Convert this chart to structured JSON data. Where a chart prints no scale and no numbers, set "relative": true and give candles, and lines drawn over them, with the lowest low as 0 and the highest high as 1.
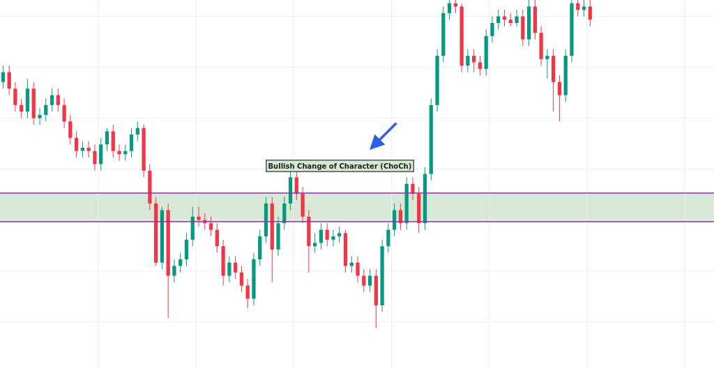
{
  "chart_data": {
    "type": "candlestick",
    "relative": true,
    "grid": true,
    "categories": [
      null,
      null,
      null,
      null,
      null,
      null,
      null,
      null,
      null,
      null,
      null,
      null,
      null,
      null,
      null,
      null,
      null,
      null,
      null,
      null,
      null,
      null,
      null,
      null,
      null,
      null,
      null,
      null,
      null,
      null,
      null,
      null,
      null,
      null,
      null,
      null,
      null,
      null,
      null,
      null,
      null,
      null,
      null,
      null,
      null,
      null,
      null,
      null,
      null,
      null,
      null,
      null,
      null,
      null,
      null,
      null,
      null,
      null,
      null,
      null,
      null,
      null,
      null,
      null,
      null,
      null,
      null,
      null,
      null,
      null,
      null,
      null,
      null,
      null,
      null,
      null,
      null,
      null,
      null,
      null,
      null,
      null,
      null,
      null,
      null,
      null,
      null,
      null,
      null,
      null,
      null,
      null,
      null,
      null,
      null,
      null,
      null
    ],
    "ohlc": [
      [
        0.75,
        0.8,
        0.73,
        0.78
      ],
      [
        0.78,
        0.8,
        0.71,
        0.73
      ],
      [
        0.73,
        0.75,
        0.66,
        0.68
      ],
      [
        0.68,
        0.7,
        0.64,
        0.66
      ],
      [
        0.66,
        0.76,
        0.64,
        0.73
      ],
      [
        0.73,
        0.75,
        0.62,
        0.64
      ],
      [
        0.64,
        0.67,
        0.62,
        0.65
      ],
      [
        0.65,
        0.7,
        0.63,
        0.68
      ],
      [
        0.68,
        0.73,
        0.66,
        0.71
      ],
      [
        0.71,
        0.73,
        0.66,
        0.68
      ],
      [
        0.68,
        0.7,
        0.61,
        0.63
      ],
      [
        0.63,
        0.65,
        0.56,
        0.58
      ],
      [
        0.58,
        0.6,
        0.52,
        0.54
      ],
      [
        0.54,
        0.57,
        0.52,
        0.55
      ],
      [
        0.55,
        0.57,
        0.52,
        0.54
      ],
      [
        0.54,
        0.56,
        0.48,
        0.5
      ],
      [
        0.5,
        0.58,
        0.48,
        0.56
      ],
      [
        0.56,
        0.61,
        0.54,
        0.6
      ],
      [
        0.6,
        0.62,
        0.52,
        0.54
      ],
      [
        0.54,
        0.56,
        0.51,
        0.53
      ],
      [
        0.53,
        0.56,
        0.51,
        0.54
      ],
      [
        0.54,
        0.61,
        0.52,
        0.59
      ],
      [
        0.59,
        0.63,
        0.57,
        0.61
      ],
      [
        0.61,
        0.62,
        0.46,
        0.48
      ],
      [
        0.48,
        0.5,
        0.36,
        0.38
      ],
      [
        0.38,
        0.4,
        0.19,
        0.2
      ],
      [
        0.2,
        0.37,
        0.18,
        0.36
      ],
      [
        0.36,
        0.38,
        0.03,
        0.16
      ],
      [
        0.16,
        0.21,
        0.14,
        0.19
      ],
      [
        0.19,
        0.23,
        0.17,
        0.21
      ],
      [
        0.21,
        0.29,
        0.19,
        0.27
      ],
      [
        0.27,
        0.37,
        0.25,
        0.34
      ],
      [
        0.34,
        0.37,
        0.31,
        0.33
      ],
      [
        0.33,
        0.35,
        0.3,
        0.32
      ],
      [
        0.32,
        0.34,
        0.28,
        0.3
      ],
      [
        0.3,
        0.32,
        0.23,
        0.25
      ],
      [
        0.25,
        0.27,
        0.13,
        0.16
      ],
      [
        0.16,
        0.22,
        0.14,
        0.2
      ],
      [
        0.2,
        0.22,
        0.15,
        0.17
      ],
      [
        0.17,
        0.19,
        0.11,
        0.13
      ],
      [
        0.13,
        0.15,
        0.06,
        0.09
      ],
      [
        0.09,
        0.23,
        0.07,
        0.21
      ],
      [
        0.21,
        0.3,
        0.19,
        0.28
      ],
      [
        0.28,
        0.4,
        0.26,
        0.38
      ],
      [
        0.38,
        0.4,
        0.14,
        0.24
      ],
      [
        0.24,
        0.34,
        0.22,
        0.32
      ],
      [
        0.32,
        0.4,
        0.3,
        0.38
      ],
      [
        0.38,
        0.48,
        0.36,
        0.46
      ],
      [
        0.46,
        0.48,
        0.39,
        0.41
      ],
      [
        0.41,
        0.43,
        0.32,
        0.34
      ],
      [
        0.34,
        0.36,
        0.17,
        0.25
      ],
      [
        0.25,
        0.29,
        0.23,
        0.26
      ],
      [
        0.26,
        0.32,
        0.24,
        0.3
      ],
      [
        0.3,
        0.32,
        0.25,
        0.27
      ],
      [
        0.27,
        0.3,
        0.25,
        0.28
      ],
      [
        0.28,
        0.31,
        0.26,
        0.29
      ],
      [
        0.29,
        0.3,
        0.17,
        0.19
      ],
      [
        0.19,
        0.22,
        0.17,
        0.2
      ],
      [
        0.2,
        0.22,
        0.14,
        0.16
      ],
      [
        0.16,
        0.18,
        0.11,
        0.13
      ],
      [
        0.13,
        0.18,
        0.11,
        0.16
      ],
      [
        0.16,
        0.18,
        0.0,
        0.07
      ],
      [
        0.07,
        0.27,
        0.05,
        0.25
      ],
      [
        0.25,
        0.32,
        0.23,
        0.3
      ],
      [
        0.3,
        0.38,
        0.28,
        0.36
      ],
      [
        0.36,
        0.38,
        0.3,
        0.32
      ],
      [
        0.32,
        0.46,
        0.3,
        0.44
      ],
      [
        0.44,
        0.46,
        0.39,
        0.41
      ],
      [
        0.41,
        0.43,
        0.29,
        0.32
      ],
      [
        0.32,
        0.49,
        0.3,
        0.47
      ],
      [
        0.47,
        0.7,
        0.45,
        0.68
      ],
      [
        0.68,
        0.85,
        0.66,
        0.83
      ],
      [
        0.83,
        0.98,
        0.81,
        0.96
      ],
      [
        0.96,
        1.0,
        0.94,
        0.99
      ],
      [
        0.99,
        1.0,
        0.96,
        0.98
      ],
      [
        0.98,
        0.99,
        0.78,
        0.8
      ],
      [
        0.8,
        0.85,
        0.78,
        0.83
      ],
      [
        0.83,
        0.85,
        0.78,
        0.81
      ],
      [
        0.81,
        0.83,
        0.77,
        0.79
      ],
      [
        0.79,
        0.91,
        0.77,
        0.89
      ],
      [
        0.89,
        0.95,
        0.87,
        0.93
      ],
      [
        0.93,
        0.97,
        0.91,
        0.95
      ],
      [
        0.95,
        0.97,
        0.92,
        0.94
      ],
      [
        0.94,
        0.96,
        0.92,
        0.93
      ],
      [
        0.93,
        0.97,
        0.92,
        0.95
      ],
      [
        0.95,
        0.97,
        0.86,
        0.88
      ],
      [
        0.88,
        1.0,
        0.86,
        0.98
      ],
      [
        0.98,
        1.0,
        0.88,
        0.9
      ],
      [
        0.9,
        0.92,
        0.8,
        0.82
      ],
      [
        0.82,
        0.85,
        0.76,
        0.83
      ],
      [
        0.83,
        0.85,
        0.66,
        0.75
      ],
      [
        0.75,
        0.77,
        0.63,
        0.71
      ],
      [
        0.71,
        0.85,
        0.69,
        0.83
      ],
      [
        0.83,
        1.0,
        0.81,
        0.99
      ],
      [
        0.99,
        1.0,
        0.95,
        0.97
      ],
      [
        0.97,
        1.0,
        0.95,
        0.98
      ],
      [
        0.98,
        1.0,
        0.92,
        0.94
      ]
    ],
    "bands": [
      {
        "axis": "y",
        "from": 0.325,
        "to": 0.412,
        "color": "#d5e8d4"
      }
    ],
    "ref_lines": [
      {
        "axis": "y",
        "value": 0.325,
        "color": "#9c27b0"
      },
      {
        "axis": "y",
        "value": 0.412,
        "color": "#9c27b0"
      }
    ],
    "annotations": [
      "Bullish Change of Character (ChoCh)"
    ]
  }
}
